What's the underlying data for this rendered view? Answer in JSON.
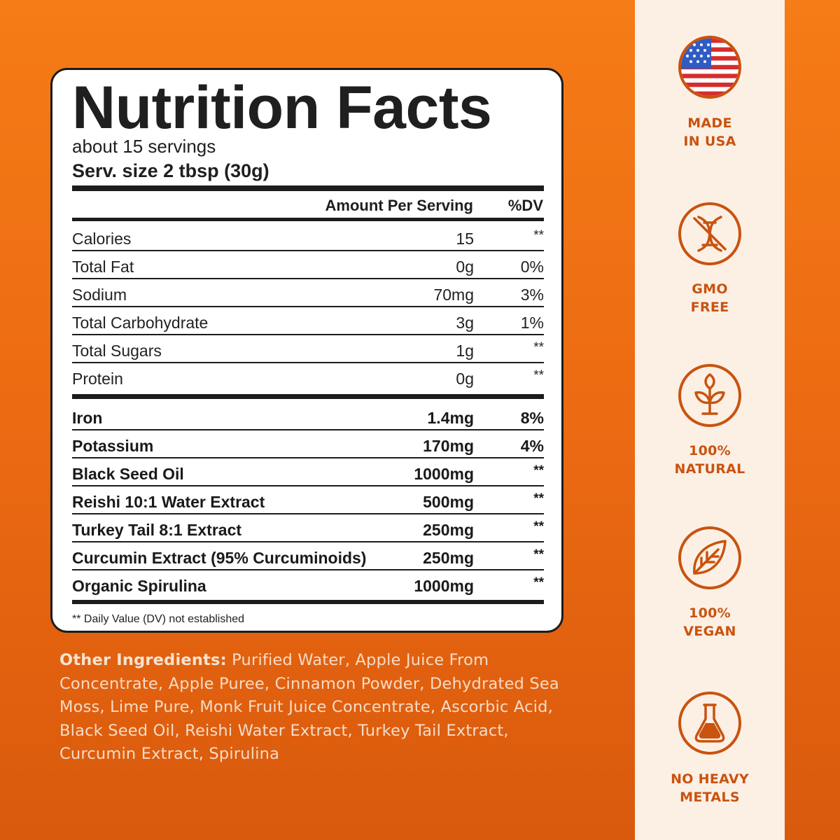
{
  "panel": {
    "title": "Nutrition Facts",
    "servings": "about 15 servings",
    "serving_size": "Serv. size 2 tbsp (30g)",
    "header": {
      "amount": "Amount Per Serving",
      "dv": "%DV"
    },
    "rows": [
      {
        "name": "Calories",
        "amount": "15",
        "dv": "**"
      },
      {
        "name": "Total Fat",
        "amount": "0g",
        "dv": "0%"
      },
      {
        "name": "Sodium",
        "amount": "70mg",
        "dv": "3%"
      },
      {
        "name": "Total Carbohydrate",
        "amount": "3g",
        "dv": "1%"
      },
      {
        "name": "Total Sugars",
        "amount": "1g",
        "dv": "**"
      },
      {
        "name": "Protein",
        "amount": "0g",
        "dv": "**"
      },
      {
        "name": "Iron",
        "amount": "1.4mg",
        "dv": "8%"
      },
      {
        "name": "Potassium",
        "amount": "170mg",
        "dv": "4%"
      },
      {
        "name": "Black Seed Oil",
        "amount": "1000mg",
        "dv": "**"
      },
      {
        "name": "Reishi 10:1 Water Extract",
        "amount": "500mg",
        "dv": "**"
      },
      {
        "name": "Turkey Tail 8:1 Extract",
        "amount": "250mg",
        "dv": "**"
      },
      {
        "name": "Curcumin Extract (95% Curcuminoids)",
        "amount": "250mg",
        "dv": "**"
      },
      {
        "name": "Organic Spirulina",
        "amount": "1000mg",
        "dv": "**"
      }
    ],
    "footnote": "** Daily Value (DV) not established"
  },
  "ingredients": {
    "label": "Other Ingredients:",
    "text": "Purified Water, Apple Juice From Concentrate, Apple Puree, Cinnamon Powder, Dehydrated Sea Moss, Lime Pure, Monk Fruit Juice Concentrate, Ascorbic Acid, Black Seed Oil, Reishi Water Extract, Turkey Tail Extract, Curcumin Extract, Spirulina"
  },
  "badges": [
    {
      "icon": "us-flag-icon",
      "line1": "MADE",
      "line2": "IN USA"
    },
    {
      "icon": "no-gmo-dna-icon",
      "line1": "GMO",
      "line2": "FREE"
    },
    {
      "icon": "plant-sprout-icon",
      "line1": "100%",
      "line2": "NATURAL"
    },
    {
      "icon": "leaf-icon",
      "line1": "100%",
      "line2": "VEGAN"
    },
    {
      "icon": "flask-icon",
      "line1": "NO HEAVY",
      "line2": "METALS"
    }
  ],
  "colors": {
    "background": "#ec6a12",
    "side_panel": "#fcf0e5",
    "accent": "#c9530f",
    "flag_red": "#d72c2c",
    "flag_blue": "#2f5cc4"
  }
}
